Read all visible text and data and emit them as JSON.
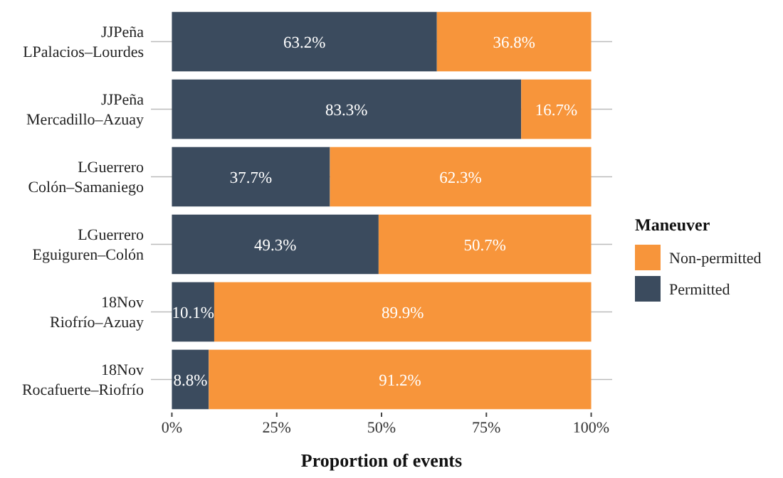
{
  "chart_data": {
    "type": "bar",
    "orientation": "horizontal",
    "stacked": true,
    "categories": [
      "JJPeña\nLPalacios–Lourdes",
      "JJPeña\nMercadillo–Azuay",
      "LGuerrero\nColón–Samaniego",
      "LGuerrero\nEguiguren–Colón",
      "18Nov\nRiofrío–Azuay",
      "18Nov\nRocafuerte–Riofrío"
    ],
    "series": [
      {
        "name": "Permitted",
        "color": "#3b4b5e",
        "values": [
          63.2,
          83.3,
          37.7,
          49.3,
          10.1,
          8.8
        ],
        "value_labels": [
          "63.2%",
          "83.3%",
          "37.7%",
          "49.3%",
          "10.1%",
          "8.8%"
        ]
      },
      {
        "name": "Non-permitted",
        "color": "#f7953b",
        "values": [
          36.8,
          16.7,
          62.3,
          50.7,
          89.9,
          91.2
        ],
        "value_labels": [
          "36.8%",
          "16.7%",
          "62.3%",
          "50.7%",
          "89.9%",
          "91.2%"
        ]
      }
    ],
    "xlim": [
      -5,
      105
    ],
    "xticks": [
      {
        "value": 0,
        "label": "0%"
      },
      {
        "value": 25,
        "label": "25%"
      },
      {
        "value": 50,
        "label": "50%"
      },
      {
        "value": 75,
        "label": "75%"
      },
      {
        "value": 100,
        "label": "100%"
      }
    ],
    "xlabel": "Proportion of events",
    "legend_title": "Maneuver",
    "legend": "right",
    "grid": "y"
  }
}
